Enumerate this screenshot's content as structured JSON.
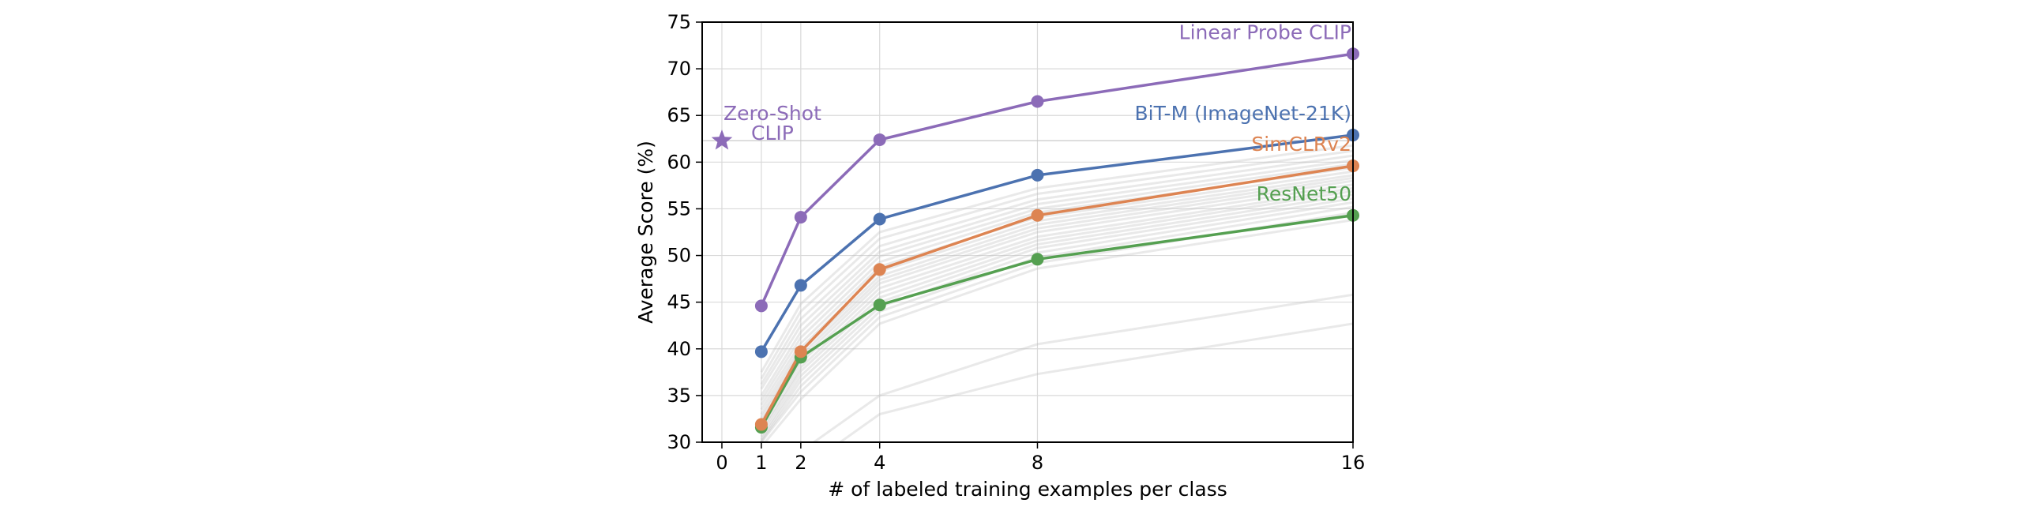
{
  "chart_data": {
    "type": "line",
    "xlabel": "# of labeled training examples per class",
    "ylabel": "Average Score (%)",
    "x_ticks": [
      0,
      1,
      2,
      4,
      8,
      16
    ],
    "y_ticks": [
      30,
      35,
      40,
      45,
      50,
      55,
      60,
      65,
      70,
      75
    ],
    "xlim": [
      -0.5,
      16
    ],
    "ylim": [
      30,
      75
    ],
    "grid": true,
    "legend": "inline labels at right end of lines",
    "series": [
      {
        "name": "Linear Probe CLIP",
        "color": "#8c6bb8",
        "x": [
          1,
          2,
          4,
          8,
          16
        ],
        "values": [
          44.6,
          54.1,
          62.4,
          66.5,
          71.6
        ]
      },
      {
        "name": "BiT-M (ImageNet-21K)",
        "color": "#4c72b0",
        "x": [
          1,
          2,
          4,
          8,
          16
        ],
        "values": [
          39.7,
          46.8,
          53.9,
          58.6,
          62.9
        ]
      },
      {
        "name": "SimCLRv2",
        "color": "#dd8452",
        "x": [
          1,
          2,
          4,
          8,
          16
        ],
        "values": [
          31.9,
          39.7,
          48.5,
          54.3,
          59.6
        ]
      },
      {
        "name": "ResNet50",
        "color": "#55a051",
        "x": [
          1,
          2,
          4,
          8,
          16
        ],
        "values": [
          31.6,
          39.1,
          44.7,
          49.6,
          54.3
        ]
      }
    ],
    "background_series": [
      [
        37.5,
        44.8,
        52.5,
        57.2,
        61.8
      ],
      [
        36.8,
        44.0,
        51.8,
        56.6,
        61.2
      ],
      [
        36.2,
        43.2,
        51.0,
        56.0,
        60.7
      ],
      [
        35.7,
        42.5,
        50.4,
        55.5,
        60.2
      ],
      [
        35.0,
        41.8,
        49.9,
        55.0,
        59.8
      ],
      [
        34.5,
        41.2,
        49.3,
        54.6,
        59.4
      ],
      [
        34.0,
        40.6,
        48.8,
        54.1,
        59.0
      ],
      [
        33.5,
        40.1,
        48.3,
        53.7,
        58.6
      ],
      [
        33.0,
        39.7,
        47.8,
        53.3,
        58.3
      ],
      [
        32.6,
        39.3,
        47.4,
        52.9,
        58.0
      ],
      [
        32.2,
        38.9,
        47.0,
        52.5,
        57.6
      ],
      [
        31.8,
        38.5,
        46.5,
        52.0,
        57.2
      ],
      [
        31.3,
        38.0,
        46.0,
        51.6,
        56.9
      ],
      [
        31.0,
        37.6,
        45.5,
        51.2,
        56.5
      ],
      [
        30.6,
        37.1,
        45.0,
        50.8,
        56.1
      ],
      [
        30.3,
        36.6,
        44.5,
        50.3,
        55.7
      ],
      [
        30.1,
        36.0,
        44.0,
        49.8,
        55.2
      ],
      [
        30.0,
        35.4,
        43.4,
        49.2,
        54.6
      ],
      [
        29.5,
        34.6,
        42.7,
        48.6,
        53.8
      ],
      [
        22.0,
        29.0,
        35.0,
        40.5,
        45.8
      ],
      [
        20.0,
        27.0,
        33.0,
        37.3,
        42.7
      ]
    ],
    "zero_shot": {
      "x": 0,
      "y": 62.3,
      "label": [
        "Zero-Shot",
        "CLIP"
      ],
      "color": "#8c6bb8"
    }
  }
}
